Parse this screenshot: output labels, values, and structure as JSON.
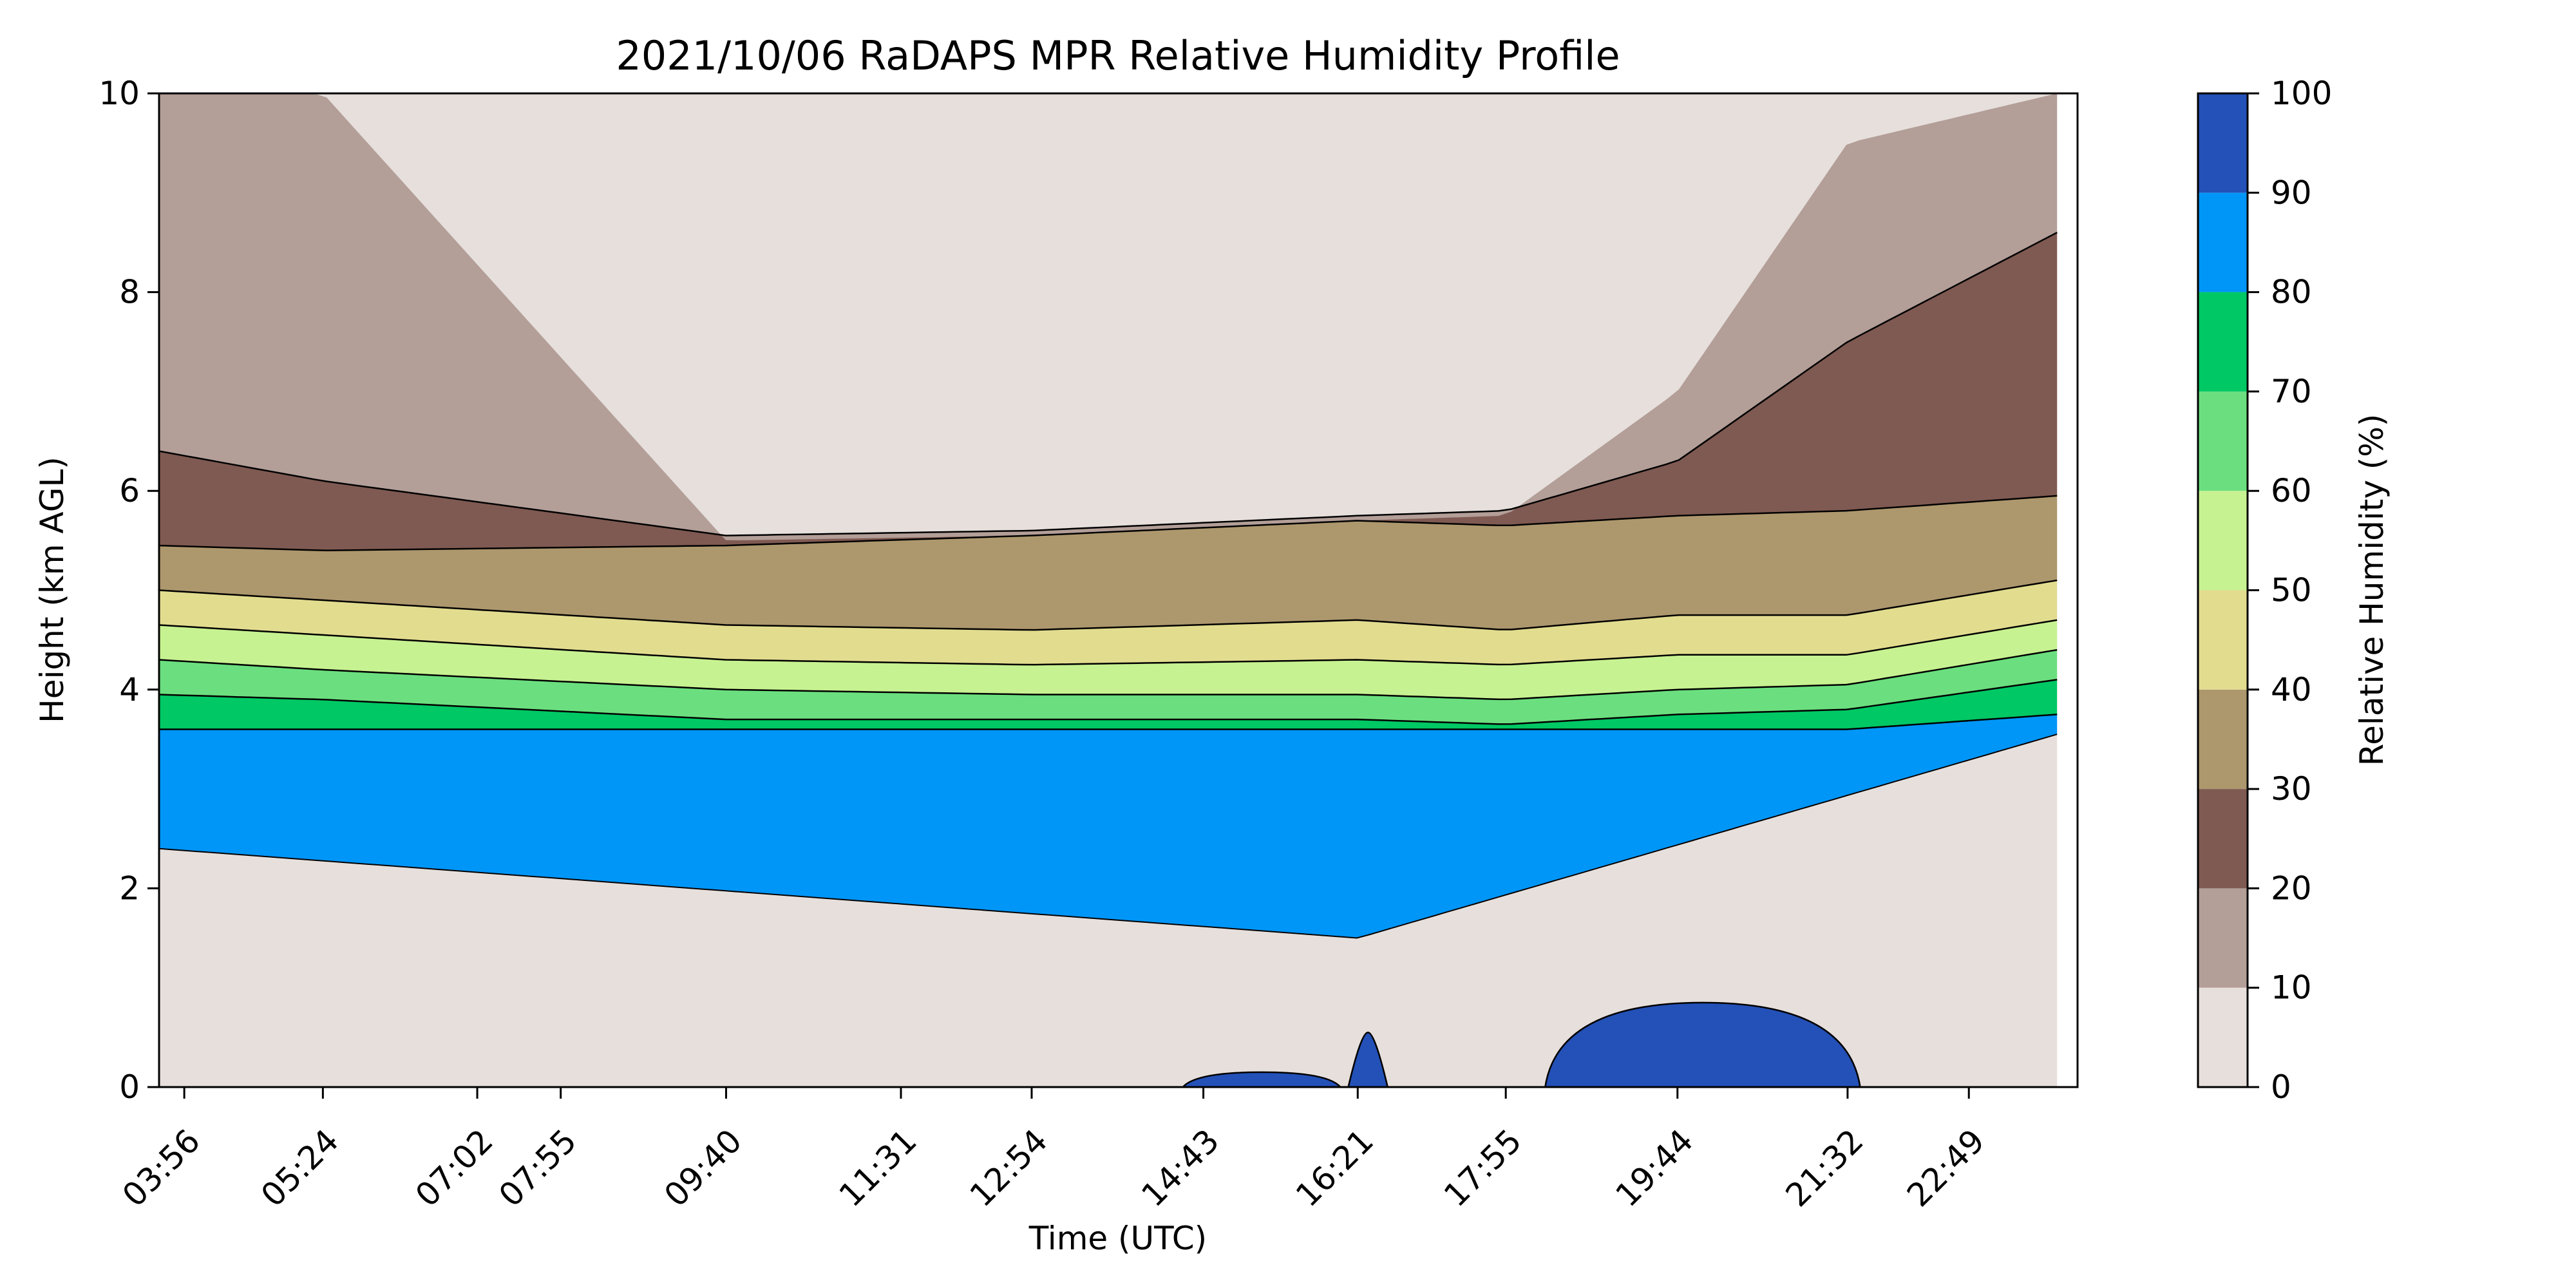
{
  "chart_data": {
    "type": "heatmap",
    "subtype": "filled-contour",
    "title": "2021/10/06 RaDAPS MPR Relative Humidity Profile",
    "xlabel": "Time (UTC)",
    "ylabel": "Height (km AGL)",
    "colorbar_label": "Relative Humidity (%)",
    "x_ticks": [
      "03:56",
      "05:24",
      "07:02",
      "07:55",
      "09:40",
      "11:31",
      "12:54",
      "14:43",
      "16:21",
      "17:55",
      "19:44",
      "21:32",
      "22:49"
    ],
    "x_range": [
      "03:40",
      "23:58"
    ],
    "y_ticks": [
      0,
      2,
      4,
      6,
      8,
      10
    ],
    "ylim": [
      0,
      10
    ],
    "levels": [
      0,
      10,
      20,
      30,
      40,
      50,
      60,
      70,
      80,
      90,
      100
    ],
    "level_colors": [
      "#e6dfdc",
      "#b39e98",
      "#7f5a52",
      "#ad976d",
      "#e2dc8f",
      "#c7f291",
      "#6bdf7f",
      "#00c864",
      "#0096f8",
      "#2351b7"
    ],
    "band_tops_km": {
      "x": [
        "03:40",
        "05:24",
        "09:40",
        "12:54",
        "16:21",
        "17:55",
        "19:44",
        "21:32",
        "23:45"
      ],
      "rh90_top": [
        3.6,
        3.6,
        3.6,
        3.6,
        3.6,
        3.6,
        3.6,
        3.6,
        3.75
      ],
      "rh80_top": [
        3.95,
        3.9,
        3.7,
        3.7,
        3.7,
        3.65,
        3.75,
        3.8,
        4.1
      ],
      "rh70_top": [
        4.3,
        4.2,
        4.0,
        3.95,
        3.95,
        3.9,
        4.0,
        4.05,
        4.4
      ],
      "rh60_top": [
        4.65,
        4.55,
        4.3,
        4.25,
        4.3,
        4.25,
        4.35,
        4.35,
        4.7
      ],
      "rh50_top": [
        5.0,
        4.9,
        4.65,
        4.6,
        4.7,
        4.6,
        4.75,
        4.75,
        5.1
      ],
      "rh40_top": [
        5.45,
        5.4,
        5.45,
        5.55,
        5.7,
        5.65,
        5.75,
        5.8,
        5.95
      ],
      "rh30_top": [
        6.4,
        6.1,
        5.55,
        5.6,
        5.75,
        5.8,
        6.3,
        7.5,
        8.6
      ],
      "rh20_top": [
        10,
        10,
        5.5,
        5.55,
        5.7,
        5.75,
        7.0,
        9.5,
        10
      ]
    },
    "lower_edge_rh80_km": {
      "x": [
        "03:40",
        "16:21",
        "23:45"
      ],
      "y": [
        2.4,
        1.5,
        3.55
      ]
    },
    "surface_rh90_patches": [
      {
        "x": [
          "14:30",
          "16:10"
        ],
        "ymax_km": 0.15
      },
      {
        "x": [
          "16:15",
          "16:40"
        ],
        "ymax_km": 0.55
      },
      {
        "x": [
          "18:20",
          "21:40"
        ],
        "ymax_km": 0.85
      }
    ],
    "grid": false
  }
}
